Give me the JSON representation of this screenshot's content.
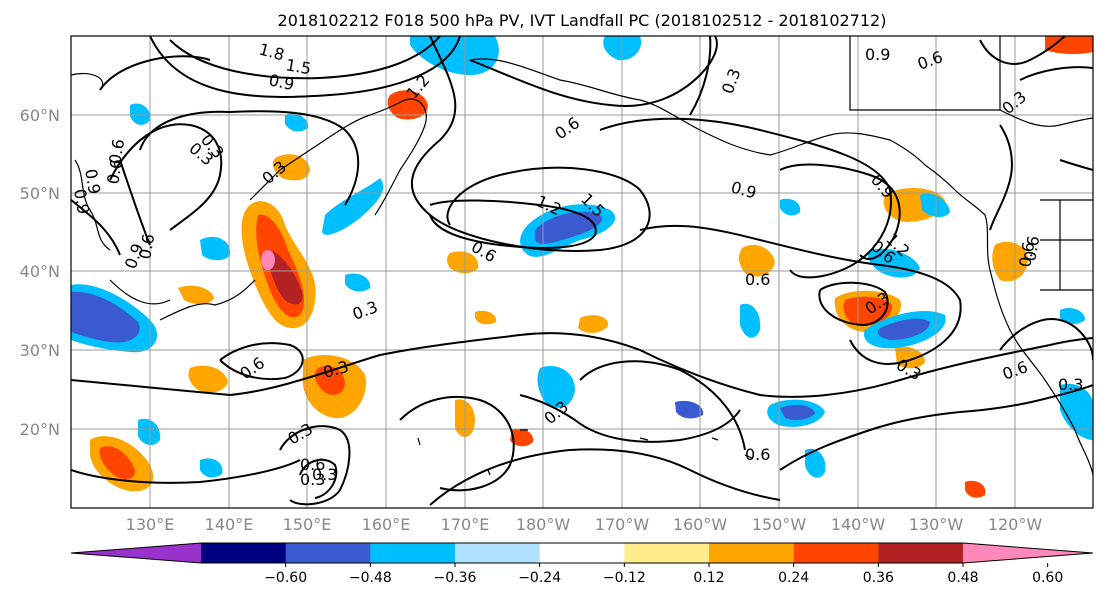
{
  "title": "2018102212 F018 500 hPa PV, IVT Landfall PC (2018102512 - 2018102712)",
  "lat_labels": [
    "60°N",
    "50°N",
    "40°N",
    "30°N",
    "20°N"
  ],
  "lon_labels": [
    "130°E",
    "140°E",
    "150°E",
    "160°E",
    "170°E",
    "180°W",
    "170°W",
    "160°W",
    "150°W",
    "140°W",
    "130°W",
    "120°W"
  ],
  "colorbar": {
    "colors": [
      "#9932cc",
      "#000080",
      "#3a5bd0",
      "#00bfff",
      "#b0e2ff",
      "#ffffff",
      "#ffec8b",
      "#ffa500",
      "#ff4500",
      "#b22222",
      "#ff88bb"
    ],
    "ticks": [
      "−0.60",
      "−0.48",
      "−0.36",
      "−0.24",
      "−0.12",
      "0.12",
      "0.24",
      "0.36",
      "0.48",
      "0.60"
    ]
  },
  "contour_labels": [
    "1.8",
    "1.5",
    "0.9",
    "1.2",
    "0.9",
    "0.6",
    "0.3",
    "0.6",
    "0.9",
    "0.6",
    "0.9",
    "0.3",
    "0.6",
    "1.2",
    "1.5",
    "0.9",
    "0.3",
    "0.3",
    "0.6",
    "0.6",
    "0.3",
    "0.3",
    "0.6",
    "0.3",
    "0.6",
    "0.3",
    "0.6",
    "0.3",
    "0.3",
    "0.6",
    "0.9",
    "0.3",
    "0.6",
    "0.6",
    "0.3",
    "0.3",
    "0.9",
    "0.6",
    "1.2",
    "0.6",
    "0.3"
  ]
}
